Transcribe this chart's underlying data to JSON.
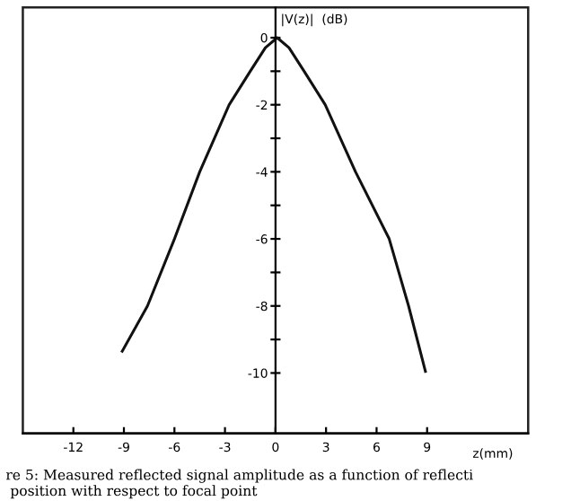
{
  "chart_data": {
    "type": "line",
    "xlabel": "z(mm)",
    "ylabel": "|V(z)|  (dB)",
    "x": [
      -9.1,
      -7.6,
      -6,
      -4.5,
      -2.75,
      -1.5,
      -0.6,
      0.1,
      0.8,
      1.7,
      2.95,
      4.75,
      6.75,
      7.9,
      8.9
    ],
    "series": [
      {
        "color": "#111111",
        "values": [
          -9.35,
          -8,
          -6,
          -4,
          -2,
          -1,
          -0.3,
          0,
          -0.3,
          -1,
          -2,
          -4,
          -6,
          -8,
          -9.95
        ]
      }
    ],
    "xlim": [
      -15,
      15
    ],
    "xticks": [
      -12,
      -9,
      -6,
      -3,
      0,
      3,
      6,
      9
    ],
    "ylim": [
      -11.8,
      0.9
    ],
    "yticks": [
      -10,
      {
        "value": -9,
        "label": null
      },
      -8,
      {
        "value": -7,
        "label": null
      },
      -6,
      {
        "value": -5,
        "label": null
      },
      -4,
      {
        "value": -3,
        "label": null
      },
      -2,
      {
        "value": -1,
        "label": null
      },
      0
    ],
    "grid": false,
    "legend": false,
    "annotations": [
      "re 5: Measured reflected signal amplitude as a function of reflecti\n position with respect to focal point"
    ]
  }
}
